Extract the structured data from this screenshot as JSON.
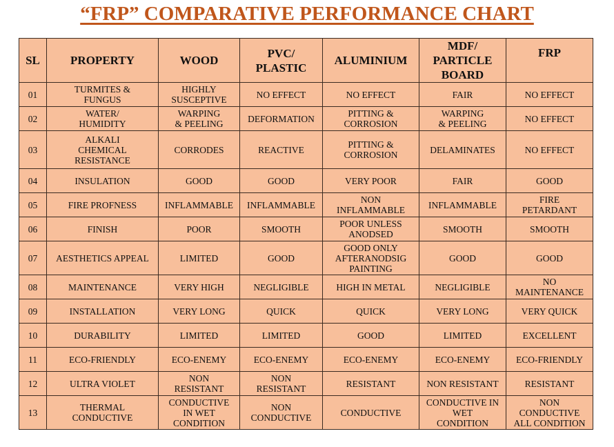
{
  "title": "“FRP” COMPARATIVE PERFORMANCE CHART",
  "colors": {
    "title": "#c0561b",
    "table_bg": "#f8bf9b",
    "border": "#3a2a20"
  },
  "headers": {
    "sl": "SL",
    "property": "PROPERTY",
    "wood": "WOOD",
    "pvc": "PVC/\nPLASTIC",
    "aluminium": "ALUMINIUM",
    "mdf": "MDF/\nPARTICLE\nBOARD",
    "frp": "FRP"
  },
  "rows": [
    {
      "sl": "01",
      "property": "TURMITES &\nFUNGUS",
      "wood": "HIGHLY\nSUSCEPTIVE",
      "pvc": "NO EFFECT",
      "aluminium": "NO EFFECT",
      "mdf": "FAIR",
      "frp": "NO EFFECT"
    },
    {
      "sl": "02",
      "property": "WATER/\nHUMIDITY",
      "wood": "WARPING\n& PEELING",
      "pvc": "DEFORMATION",
      "aluminium": "PITTING &\nCORROSION",
      "mdf": "WARPING\n& PEELING",
      "frp": "NO EFFECT"
    },
    {
      "sl": "03",
      "property": "ALKALI\nCHEMICAL\nRESISTANCE",
      "wood": "CORRODES",
      "pvc": "REACTIVE",
      "aluminium": "PITTING &\nCORROSION",
      "mdf": "DELAMINATES",
      "frp": "NO EFFECT"
    },
    {
      "sl": "04",
      "property": "INSULATION",
      "wood": "GOOD",
      "pvc": "GOOD",
      "aluminium": "VERY POOR",
      "mdf": "FAIR",
      "frp": "GOOD"
    },
    {
      "sl": "05",
      "property": "FIRE PROFNESS",
      "wood": "INFLAMMABLE",
      "pvc": "INFLAMMABLE",
      "aluminium": "NON\nINFLAMMABLE",
      "mdf": "INFLAMMABLE",
      "frp": "FIRE\nPETARDANT"
    },
    {
      "sl": "06",
      "property": "FINISH",
      "wood": "POOR",
      "pvc": "SMOOTH",
      "aluminium": "POOR UNLESS\nANODSED",
      "mdf": "SMOOTH",
      "frp": "SMOOTH"
    },
    {
      "sl": "07",
      "property": "AESTHETICS APPEAL",
      "wood": "LIMITED",
      "pvc": "GOOD",
      "aluminium": "GOOD ONLY\nAFTERANODSIG\nPAINTING",
      "mdf": "GOOD",
      "frp": "GOOD"
    },
    {
      "sl": "08",
      "property": "MAINTENANCE",
      "wood": "VERY HIGH",
      "pvc": "NEGLIGIBLE",
      "aluminium": "HIGH IN METAL",
      "mdf": "NEGLIGIBLE",
      "frp": "NO\nMAINTENANCE"
    },
    {
      "sl": "09",
      "property": "INSTALLATION",
      "wood": "VERY LONG",
      "pvc": "QUICK",
      "aluminium": "QUICK",
      "mdf": "VERY LONG",
      "frp": "VERY QUICK"
    },
    {
      "sl": "10",
      "property": "DURABILITY",
      "wood": "LIMITED",
      "pvc": "LIMITED",
      "aluminium": "GOOD",
      "mdf": "LIMITED",
      "frp": "EXCELLENT"
    },
    {
      "sl": "11",
      "property": "ECO-FRIENDLY",
      "wood": "ECO-ENEMY",
      "pvc": "ECO-ENEMY",
      "aluminium": "ECO-ENEMY",
      "mdf": "ECO-ENEMY",
      "frp": "ECO-FRIENDLY"
    },
    {
      "sl": "12",
      "property": "ULTRA VIOLET",
      "wood": "NON\nRESISTANT",
      "pvc": "NON\nRESISTANT",
      "aluminium": "RESISTANT",
      "mdf": "NON RESISTANT",
      "frp": "RESISTANT"
    },
    {
      "sl": "13",
      "property": "THERMAL\nCONDUCTIVE",
      "wood": "CONDUCTIVE\nIN WET\nCONDITION",
      "pvc": "NON\nCONDUCTIVE",
      "aluminium": "CONDUCTIVE",
      "mdf": "CONDUCTIVE IN\nWET\nCONDITION",
      "frp": "NON\nCONDUCTIVE\nALL CONDITION"
    }
  ]
}
